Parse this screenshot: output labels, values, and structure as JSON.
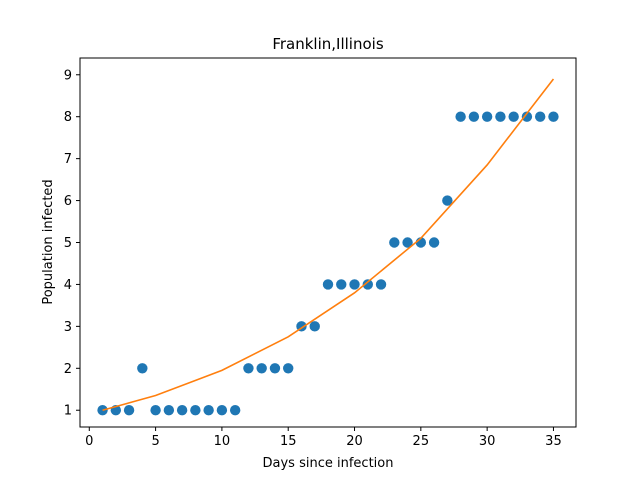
{
  "chart_data": {
    "type": "scatter",
    "title": "Franklin,Illinois",
    "xlabel": "Days since infection",
    "ylabel": "Population infected",
    "xlim": [
      -0.7,
      36.7
    ],
    "ylim": [
      0.6,
      9.4
    ],
    "xticks": [
      0,
      5,
      10,
      15,
      20,
      25,
      30,
      35
    ],
    "yticks": [
      1,
      2,
      3,
      4,
      5,
      6,
      7,
      8,
      9
    ],
    "grid": false,
    "legend": "none",
    "series": [
      {
        "kind": "scatter",
        "color": "#1f77b4",
        "x": [
          1,
          2,
          3,
          4,
          5,
          6,
          7,
          8,
          9,
          10,
          11,
          12,
          13,
          14,
          15,
          16,
          17,
          18,
          19,
          20,
          21,
          22,
          23,
          24,
          25,
          26,
          27,
          28,
          29,
          30,
          31,
          32,
          33,
          34,
          35
        ],
        "y": [
          1,
          1,
          1,
          2,
          1,
          1,
          1,
          1,
          1,
          1,
          1,
          2,
          2,
          2,
          2,
          3,
          3,
          4,
          4,
          4,
          4,
          4,
          5,
          5,
          5,
          5,
          6,
          8,
          8,
          8,
          8,
          8,
          8,
          8,
          8
        ]
      },
      {
        "kind": "line",
        "color": "#ff7f0e",
        "x": [
          1,
          5,
          10,
          15,
          20,
          25,
          30,
          35
        ],
        "y": [
          1.0,
          1.35,
          1.95,
          2.75,
          3.8,
          5.1,
          6.85,
          8.9
        ]
      }
    ]
  }
}
